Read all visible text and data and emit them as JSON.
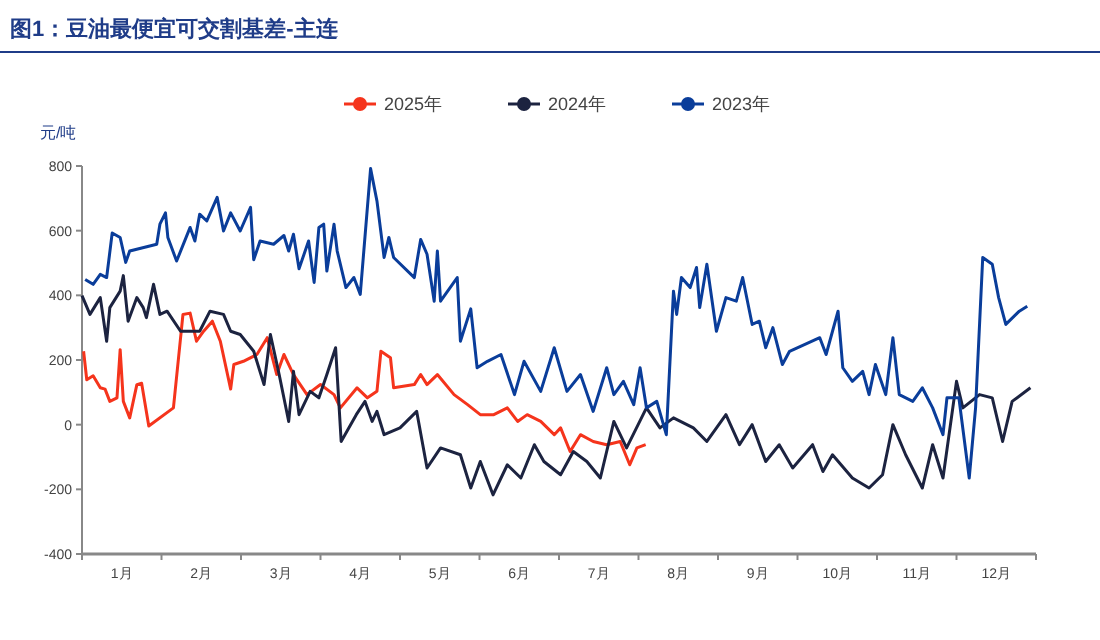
{
  "chart_data": {
    "type": "line",
    "title": "图1：豆油最便宜可交割基差-主连",
    "ylabel": "元/吨",
    "legend": "top",
    "marker": "none",
    "line_style": "solid",
    "grid": false,
    "xlim": [
      0,
      12
    ],
    "xticks": [
      {
        "value": 0,
        "label": null
      },
      {
        "value": 0.5,
        "label": "1月"
      },
      {
        "value": 1,
        "label": null
      },
      {
        "value": 1.5,
        "label": "2月"
      },
      {
        "value": 2,
        "label": null
      },
      {
        "value": 2.5,
        "label": "3月"
      },
      {
        "value": 3,
        "label": null
      },
      {
        "value": 3.5,
        "label": "4月"
      },
      {
        "value": 4,
        "label": null
      },
      {
        "value": 4.5,
        "label": "5月"
      },
      {
        "value": 5,
        "label": null
      },
      {
        "value": 5.5,
        "label": "6月"
      },
      {
        "value": 6,
        "label": null
      },
      {
        "value": 6.5,
        "label": "7月"
      },
      {
        "value": 7,
        "label": null
      },
      {
        "value": 7.5,
        "label": "8月"
      },
      {
        "value": 8,
        "label": null
      },
      {
        "value": 8.5,
        "label": "9月"
      },
      {
        "value": 9,
        "label": null
      },
      {
        "value": 9.5,
        "label": "10月"
      },
      {
        "value": 10,
        "label": null
      },
      {
        "value": 10.5,
        "label": "11月"
      },
      {
        "value": 11,
        "label": null
      },
      {
        "value": 11.5,
        "label": "12月"
      },
      {
        "value": 12,
        "label": null
      }
    ],
    "ylim": [
      -400,
      800
    ],
    "yticks": [
      -400,
      -200,
      0,
      200,
      400,
      600,
      800
    ],
    "series": [
      {
        "name": "2025年",
        "color": "#f5341c",
        "x": [
          0.02,
          0.06,
          0.14,
          0.23,
          0.29,
          0.35,
          0.44,
          0.48,
          0.52,
          0.6,
          0.69,
          0.75,
          0.84,
          1.15,
          1.27,
          1.36,
          1.44,
          1.53,
          1.64,
          1.74,
          1.87,
          1.91,
          2.03,
          2.2,
          2.33,
          2.45,
          2.54,
          2.66,
          2.83,
          3.0,
          3.17,
          3.25,
          3.46,
          3.59,
          3.71,
          3.76,
          3.88,
          3.92,
          4.18,
          4.26,
          4.34,
          4.47,
          4.68,
          4.85,
          5.01,
          5.18,
          5.35,
          5.48,
          5.6,
          5.77,
          5.94,
          6.02,
          6.14,
          6.27,
          6.43,
          6.6,
          6.77,
          6.89,
          6.98,
          7.09
        ],
        "values": [
          227,
          139,
          151,
          114,
          110,
          72,
          83,
          232,
          72,
          21,
          124,
          128,
          -4,
          52,
          341,
          345,
          258,
          289,
          320,
          258,
          110,
          186,
          196,
          217,
          269,
          155,
          217,
          155,
          93,
          124,
          93,
          52,
          114,
          83,
          103,
          227,
          207,
          114,
          124,
          155,
          124,
          155,
          93,
          62,
          31,
          31,
          52,
          10,
          31,
          10,
          -31,
          -10,
          -83,
          -31,
          -52,
          -62,
          -52,
          -124,
          -72,
          -62
        ]
      },
      {
        "name": "2024年",
        "color": "#1c2340",
        "x": [
          0,
          0.1,
          0.23,
          0.31,
          0.35,
          0.48,
          0.52,
          0.58,
          0.69,
          0.77,
          0.81,
          0.9,
          0.98,
          1.07,
          1.24,
          1.48,
          1.61,
          1.78,
          1.87,
          1.99,
          2.16,
          2.29,
          2.37,
          2.48,
          2.6,
          2.66,
          2.73,
          2.87,
          2.98,
          3.08,
          3.19,
          3.26,
          3.45,
          3.56,
          3.65,
          3.71,
          3.8,
          4.0,
          4.21,
          4.34,
          4.51,
          4.76,
          4.89,
          5.01,
          5.17,
          5.35,
          5.52,
          5.69,
          5.81,
          6.02,
          6.18,
          6.35,
          6.52,
          6.69,
          6.85,
          7.1,
          7.27,
          7.44,
          7.69,
          7.86,
          8.1,
          8.27,
          8.43,
          8.6,
          8.77,
          8.94,
          9.19,
          9.32,
          9.44,
          9.69,
          9.9,
          10.07,
          10.2,
          10.36,
          10.57,
          10.7,
          10.83,
          11.0,
          11.08,
          11.29,
          11.45,
          11.58,
          11.7,
          11.93
        ],
        "values": [
          399,
          341,
          393,
          258,
          362,
          413,
          461,
          320,
          393,
          362,
          331,
          434,
          341,
          351,
          289,
          289,
          351,
          341,
          289,
          279,
          227,
          124,
          279,
          155,
          10,
          165,
          31,
          103,
          83,
          155,
          238,
          -52,
          31,
          72,
          10,
          41,
          -31,
          -10,
          41,
          -134,
          -72,
          -93,
          -196,
          -114,
          -217,
          -124,
          -165,
          -62,
          -114,
          -155,
          -83,
          -114,
          -165,
          10,
          -72,
          52,
          -10,
          21,
          -10,
          -52,
          31,
          -62,
          0,
          -114,
          -62,
          -134,
          -62,
          -145,
          -93,
          -165,
          -196,
          -155,
          0,
          -93,
          -196,
          -62,
          -165,
          134,
          52,
          93,
          83,
          -52,
          72,
          114
        ]
      },
      {
        "name": "2023年",
        "color": "#0a3d9a",
        "x": [
          0.04,
          0.14,
          0.23,
          0.31,
          0.38,
          0.48,
          0.55,
          0.6,
          0.94,
          0.98,
          1.05,
          1.08,
          1.19,
          1.36,
          1.42,
          1.48,
          1.57,
          1.7,
          1.78,
          1.87,
          1.99,
          2.12,
          2.16,
          2.24,
          2.41,
          2.54,
          2.6,
          2.66,
          2.73,
          2.85,
          2.92,
          2.98,
          3.04,
          3.08,
          3.17,
          3.21,
          3.32,
          3.42,
          3.5,
          3.63,
          3.71,
          3.8,
          3.86,
          3.92,
          4.18,
          4.26,
          4.34,
          4.43,
          4.47,
          4.51,
          4.72,
          4.76,
          4.89,
          4.97,
          5.1,
          5.27,
          5.44,
          5.56,
          5.77,
          5.94,
          6.1,
          6.27,
          6.43,
          6.6,
          6.69,
          6.81,
          6.94,
          7.02,
          7.1,
          7.23,
          7.35,
          7.44,
          7.48,
          7.54,
          7.65,
          7.73,
          7.77,
          7.86,
          7.98,
          8.1,
          8.23,
          8.31,
          8.43,
          8.52,
          8.6,
          8.69,
          8.81,
          8.9,
          9.28,
          9.36,
          9.51,
          9.57,
          9.69,
          9.82,
          9.9,
          9.98,
          10.11,
          10.2,
          10.28,
          10.45,
          10.57,
          10.7,
          10.83,
          10.88,
          11.03,
          11.16,
          11.24,
          11.33,
          11.45,
          11.53,
          11.62,
          11.79,
          11.89
        ],
        "values": [
          449,
          434,
          465,
          455,
          593,
          579,
          502,
          537,
          558,
          620,
          655,
          579,
          506,
          610,
          568,
          651,
          630,
          703,
          599,
          655,
          599,
          672,
          510,
          568,
          558,
          585,
          537,
          589,
          482,
          568,
          440,
          610,
          620,
          475,
          620,
          537,
          424,
          455,
          403,
          792,
          692,
          517,
          579,
          517,
          455,
          573,
          527,
          382,
          537,
          382,
          455,
          258,
          358,
          176,
          196,
          217,
          93,
          196,
          103,
          238,
          103,
          155,
          41,
          176,
          93,
          134,
          62,
          176,
          52,
          72,
          -31,
          413,
          341,
          455,
          424,
          486,
          362,
          496,
          289,
          393,
          382,
          455,
          310,
          320,
          238,
          300,
          186,
          227,
          269,
          217,
          351,
          176,
          134,
          165,
          93,
          186,
          93,
          269,
          93,
          72,
          114,
          52,
          -31,
          83,
          83,
          -165,
          52,
          517,
          496,
          393,
          310,
          351,
          366
        ]
      }
    ]
  }
}
